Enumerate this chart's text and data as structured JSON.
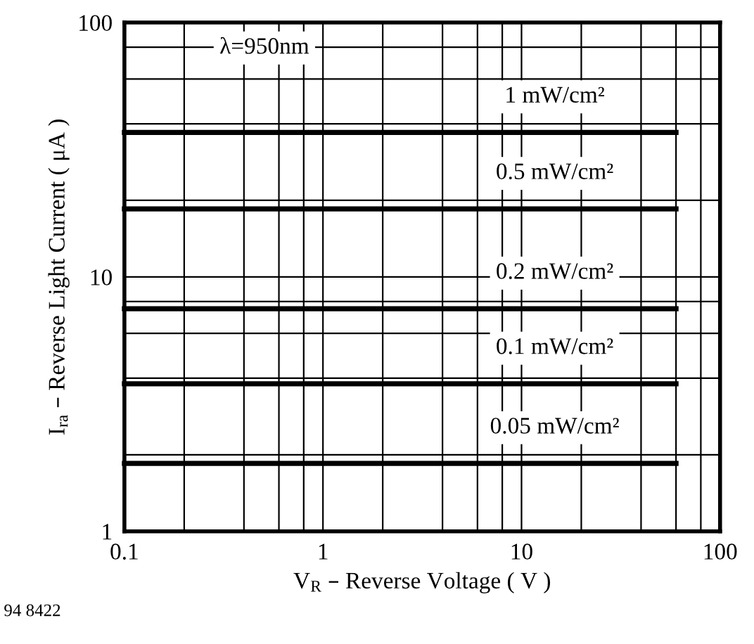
{
  "chart_data": {
    "type": "line",
    "xlabel": "V$_{R}$ – Reverse Voltage ( V )",
    "ylabel": "I$_{ra}$ – Reverse Light Current ( μA )",
    "log": "xy",
    "xlim": [
      0.1,
      100
    ],
    "ylim": [
      1,
      100
    ],
    "xticks": [
      0.1,
      {
        "value": 0.2,
        "label": null
      },
      {
        "value": 0.4,
        "label": null
      },
      {
        "value": 0.6,
        "label": null
      },
      {
        "value": 0.8,
        "label": null
      },
      1,
      {
        "value": 2,
        "label": null
      },
      {
        "value": 4,
        "label": null
      },
      {
        "value": 6,
        "label": null
      },
      {
        "value": 8,
        "label": null
      },
      10,
      {
        "value": 20,
        "label": null
      },
      {
        "value": 40,
        "label": null
      },
      {
        "value": 60,
        "label": null
      },
      {
        "value": 80,
        "label": null
      },
      100
    ],
    "yticks": [
      1,
      {
        "value": 2,
        "label": null
      },
      {
        "value": 4,
        "label": null
      },
      {
        "value": 6,
        "label": null
      },
      {
        "value": 8,
        "label": null
      },
      10,
      {
        "value": 20,
        "label": null
      },
      {
        "value": 40,
        "label": null
      },
      {
        "value": 60,
        "label": null
      },
      {
        "value": 80,
        "label": null
      },
      100
    ],
    "grid": true,
    "legend": false,
    "marker": "none",
    "line_style": "solid",
    "x": [
      0.1,
      60
    ],
    "series": [
      {
        "name": "1 mW/cm²",
        "color": "#000000",
        "values": [
          37,
          37
        ]
      },
      {
        "name": "0.5 mW/cm²",
        "color": "#000000",
        "values": [
          18.5,
          18.5
        ]
      },
      {
        "name": "0.2 mW/cm²",
        "color": "#000000",
        "values": [
          7.5,
          7.5
        ]
      },
      {
        "name": "0.1 mW/cm²",
        "color": "#000000",
        "values": [
          3.8,
          3.8
        ]
      },
      {
        "name": "0.05 mW/cm²",
        "color": "#000000",
        "values": [
          1.85,
          1.85
        ]
      }
    ],
    "annotations": [
      "λ=950nm",
      "94 8422"
    ]
  }
}
